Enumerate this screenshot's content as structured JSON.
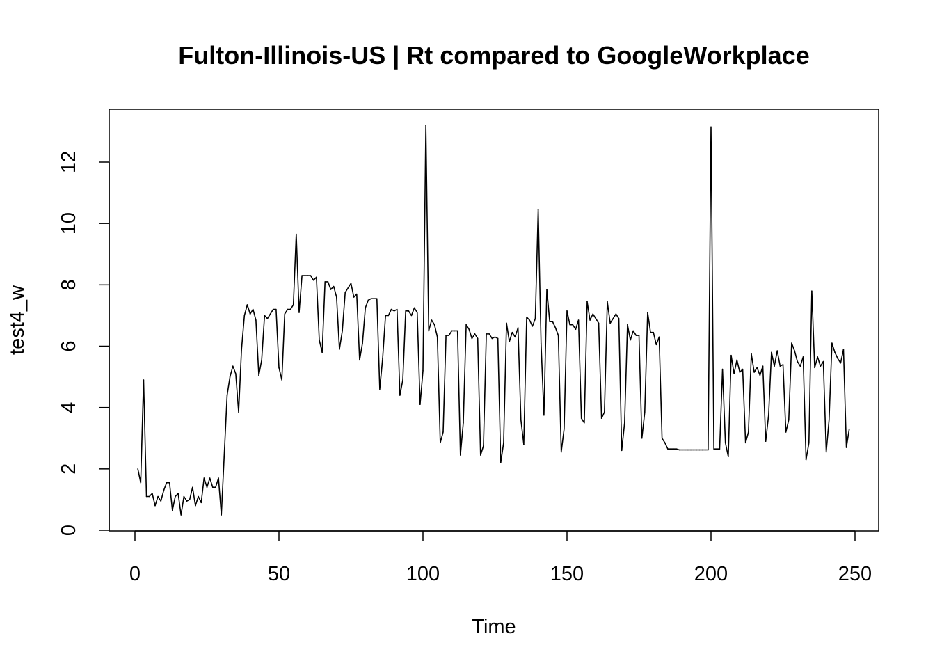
{
  "chart_data": {
    "type": "line",
    "title": "Fulton-Illinois-US | Rt compared to GoogleWorkplace",
    "xlabel": "Time",
    "ylabel": "test4_w",
    "xlim": [
      0,
      250
    ],
    "ylim": [
      0,
      13.2
    ],
    "xticks": [
      0,
      50,
      100,
      150,
      200,
      250
    ],
    "yticks": [
      0,
      2,
      4,
      6,
      8,
      10,
      12
    ],
    "grid": false,
    "legend": "none",
    "series": [
      {
        "color": "#000000",
        "points": [
          [
            1,
            2.0
          ],
          [
            2,
            1.55
          ],
          [
            3,
            4.9
          ],
          [
            4,
            1.1
          ],
          [
            5,
            1.1
          ],
          [
            6,
            1.2
          ],
          [
            7,
            0.8
          ],
          [
            8,
            1.1
          ],
          [
            9,
            0.95
          ],
          [
            10,
            1.3
          ],
          [
            11,
            1.55
          ],
          [
            12,
            1.55
          ],
          [
            13,
            0.65
          ],
          [
            14,
            1.1
          ],
          [
            15,
            1.2
          ],
          [
            16,
            0.5
          ],
          [
            17,
            1.1
          ],
          [
            18,
            0.95
          ],
          [
            19,
            1.0
          ],
          [
            20,
            1.4
          ],
          [
            21,
            0.8
          ],
          [
            22,
            1.1
          ],
          [
            23,
            0.9
          ],
          [
            24,
            1.7
          ],
          [
            25,
            1.4
          ],
          [
            26,
            1.7
          ],
          [
            27,
            1.4
          ],
          [
            28,
            1.4
          ],
          [
            29,
            1.7
          ],
          [
            30,
            0.5
          ],
          [
            32,
            4.4
          ],
          [
            33,
            5.0
          ],
          [
            34,
            5.35
          ],
          [
            35,
            5.1
          ],
          [
            36,
            3.85
          ],
          [
            37,
            5.9
          ],
          [
            38,
            7.0
          ],
          [
            39,
            7.35
          ],
          [
            40,
            7.05
          ],
          [
            41,
            7.2
          ],
          [
            42,
            6.85
          ],
          [
            43,
            5.05
          ],
          [
            44,
            5.55
          ],
          [
            45,
            7.0
          ],
          [
            46,
            6.9
          ],
          [
            47,
            7.05
          ],
          [
            48,
            7.2
          ],
          [
            49,
            7.2
          ],
          [
            50,
            5.3
          ],
          [
            51,
            4.9
          ],
          [
            52,
            7.05
          ],
          [
            53,
            7.2
          ],
          [
            54,
            7.2
          ],
          [
            55,
            7.35
          ],
          [
            56,
            9.65
          ],
          [
            57,
            7.1
          ],
          [
            58,
            8.3
          ],
          [
            59,
            8.3
          ],
          [
            60,
            8.3
          ],
          [
            61,
            8.3
          ],
          [
            62,
            8.15
          ],
          [
            63,
            8.25
          ],
          [
            64,
            6.2
          ],
          [
            65,
            5.8
          ],
          [
            66,
            8.1
          ],
          [
            67,
            8.1
          ],
          [
            68,
            7.85
          ],
          [
            69,
            7.95
          ],
          [
            70,
            7.6
          ],
          [
            71,
            5.9
          ],
          [
            72,
            6.5
          ],
          [
            73,
            7.75
          ],
          [
            74,
            7.9
          ],
          [
            75,
            8.05
          ],
          [
            76,
            7.6
          ],
          [
            77,
            7.7
          ],
          [
            78,
            5.55
          ],
          [
            79,
            6.1
          ],
          [
            80,
            7.25
          ],
          [
            81,
            7.5
          ],
          [
            82,
            7.55
          ],
          [
            83,
            7.55
          ],
          [
            84,
            7.55
          ],
          [
            85,
            4.6
          ],
          [
            86,
            5.6
          ],
          [
            87,
            7.0
          ],
          [
            88,
            7.0
          ],
          [
            89,
            7.2
          ],
          [
            90,
            7.15
          ],
          [
            91,
            7.2
          ],
          [
            92,
            4.4
          ],
          [
            93,
            4.9
          ],
          [
            94,
            7.15
          ],
          [
            95,
            7.15
          ],
          [
            96,
            7.0
          ],
          [
            97,
            7.25
          ],
          [
            98,
            7.1
          ],
          [
            99,
            4.1
          ],
          [
            100,
            5.2
          ],
          [
            101,
            13.2
          ],
          [
            102,
            6.5
          ],
          [
            103,
            6.85
          ],
          [
            104,
            6.7
          ],
          [
            105,
            6.3
          ],
          [
            106,
            2.85
          ],
          [
            107,
            3.2
          ],
          [
            108,
            6.35
          ],
          [
            109,
            6.35
          ],
          [
            110,
            6.5
          ],
          [
            111,
            6.5
          ],
          [
            112,
            6.5
          ],
          [
            113,
            2.45
          ],
          [
            114,
            3.5
          ],
          [
            115,
            6.7
          ],
          [
            116,
            6.55
          ],
          [
            117,
            6.25
          ],
          [
            118,
            6.4
          ],
          [
            119,
            6.25
          ],
          [
            120,
            2.45
          ],
          [
            121,
            2.75
          ],
          [
            122,
            6.4
          ],
          [
            123,
            6.4
          ],
          [
            124,
            6.25
          ],
          [
            125,
            6.3
          ],
          [
            126,
            6.25
          ],
          [
            127,
            2.2
          ],
          [
            128,
            2.85
          ],
          [
            129,
            6.75
          ],
          [
            130,
            6.15
          ],
          [
            131,
            6.45
          ],
          [
            132,
            6.3
          ],
          [
            133,
            6.6
          ],
          [
            134,
            3.6
          ],
          [
            135,
            2.8
          ],
          [
            136,
            6.95
          ],
          [
            137,
            6.85
          ],
          [
            138,
            6.65
          ],
          [
            139,
            6.9
          ],
          [
            140,
            10.45
          ],
          [
            141,
            6.1
          ],
          [
            142,
            3.75
          ],
          [
            143,
            7.85
          ],
          [
            144,
            6.8
          ],
          [
            145,
            6.8
          ],
          [
            146,
            6.6
          ],
          [
            147,
            6.35
          ],
          [
            148,
            2.55
          ],
          [
            149,
            3.3
          ],
          [
            150,
            7.15
          ],
          [
            151,
            6.7
          ],
          [
            152,
            6.7
          ],
          [
            153,
            6.55
          ],
          [
            154,
            6.85
          ],
          [
            155,
            3.65
          ],
          [
            156,
            3.5
          ],
          [
            157,
            7.45
          ],
          [
            158,
            6.85
          ],
          [
            159,
            7.05
          ],
          [
            160,
            6.9
          ],
          [
            161,
            6.75
          ],
          [
            162,
            3.65
          ],
          [
            163,
            3.85
          ],
          [
            164,
            7.45
          ],
          [
            165,
            6.75
          ],
          [
            166,
            6.9
          ],
          [
            167,
            7.05
          ],
          [
            168,
            6.9
          ],
          [
            169,
            2.6
          ],
          [
            170,
            3.5
          ],
          [
            171,
            6.7
          ],
          [
            172,
            6.2
          ],
          [
            173,
            6.5
          ],
          [
            174,
            6.35
          ],
          [
            175,
            6.35
          ],
          [
            176,
            3.0
          ],
          [
            177,
            3.85
          ],
          [
            178,
            7.1
          ],
          [
            179,
            6.45
          ],
          [
            180,
            6.45
          ],
          [
            181,
            6.05
          ],
          [
            182,
            6.3
          ],
          [
            183,
            3.0
          ],
          [
            184,
            2.85
          ],
          [
            185,
            2.65
          ],
          [
            186,
            2.65
          ],
          [
            187,
            2.65
          ],
          [
            188,
            2.65
          ],
          [
            189,
            2.62
          ],
          [
            190,
            2.62
          ],
          [
            191,
            2.62
          ],
          [
            192,
            2.62
          ],
          [
            193,
            2.62
          ],
          [
            194,
            2.62
          ],
          [
            195,
            2.62
          ],
          [
            196,
            2.62
          ],
          [
            197,
            2.62
          ],
          [
            198,
            2.62
          ],
          [
            199,
            2.62
          ],
          [
            200,
            13.15
          ],
          [
            201,
            2.65
          ],
          [
            202,
            2.65
          ],
          [
            203,
            2.65
          ],
          [
            204,
            5.25
          ],
          [
            205,
            2.85
          ],
          [
            206,
            2.4
          ],
          [
            207,
            5.7
          ],
          [
            208,
            5.1
          ],
          [
            209,
            5.55
          ],
          [
            210,
            5.15
          ],
          [
            211,
            5.25
          ],
          [
            212,
            2.85
          ],
          [
            213,
            3.2
          ],
          [
            214,
            5.75
          ],
          [
            215,
            5.15
          ],
          [
            216,
            5.3
          ],
          [
            217,
            5.05
          ],
          [
            218,
            5.35
          ],
          [
            219,
            2.9
          ],
          [
            220,
            3.75
          ],
          [
            221,
            5.8
          ],
          [
            222,
            5.35
          ],
          [
            223,
            5.85
          ],
          [
            224,
            5.35
          ],
          [
            225,
            5.4
          ],
          [
            226,
            3.2
          ],
          [
            227,
            3.6
          ],
          [
            228,
            6.1
          ],
          [
            229,
            5.85
          ],
          [
            230,
            5.5
          ],
          [
            231,
            5.35
          ],
          [
            232,
            5.65
          ],
          [
            233,
            2.3
          ],
          [
            234,
            2.85
          ],
          [
            235,
            7.8
          ],
          [
            236,
            5.3
          ],
          [
            237,
            5.65
          ],
          [
            238,
            5.35
          ],
          [
            239,
            5.5
          ],
          [
            240,
            2.55
          ],
          [
            241,
            3.6
          ],
          [
            242,
            6.1
          ],
          [
            243,
            5.8
          ],
          [
            244,
            5.6
          ],
          [
            245,
            5.45
          ],
          [
            246,
            5.9
          ],
          [
            247,
            2.7
          ],
          [
            248,
            3.3
          ]
        ]
      }
    ]
  }
}
